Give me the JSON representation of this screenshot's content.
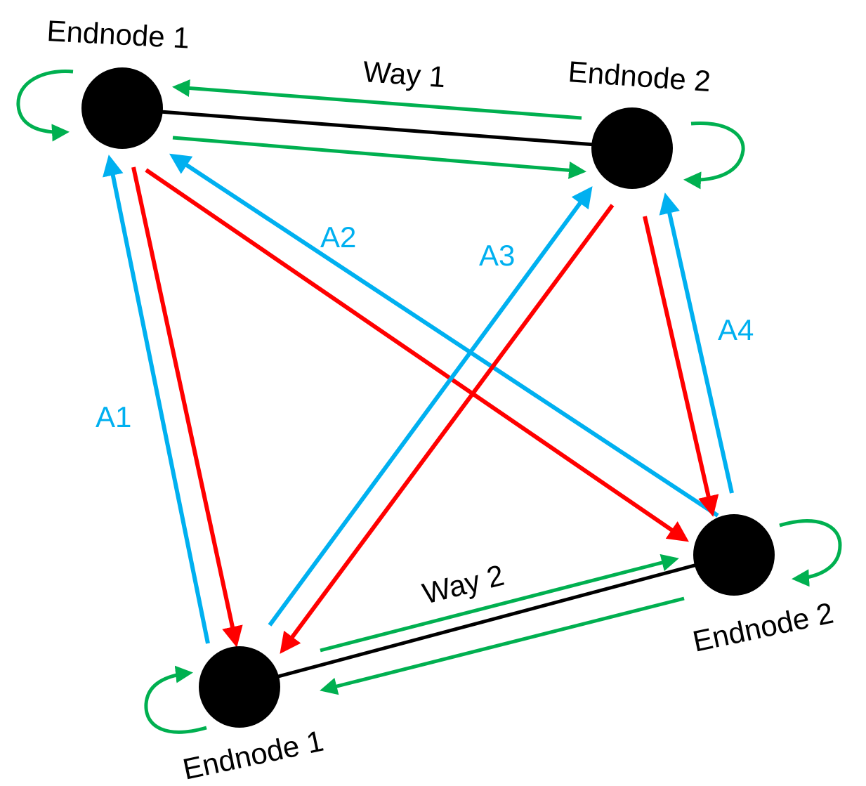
{
  "colors": {
    "node": "#000000",
    "way": "#00b050",
    "blue": "#00b0f0",
    "red": "#ff0000",
    "link": "#000000"
  },
  "nodes": {
    "top_left": {
      "label": "Endnode 1"
    },
    "top_right": {
      "label": "Endnode 2"
    },
    "bottom_left": {
      "label": "Endnode 1"
    },
    "bottom_right": {
      "label": "Endnode 2"
    }
  },
  "ways": {
    "way1": "Way 1",
    "way2": "Way 2"
  },
  "arrow_labels": {
    "a1": "A1",
    "a2": "A2",
    "a3": "A3",
    "a4": "A4"
  }
}
